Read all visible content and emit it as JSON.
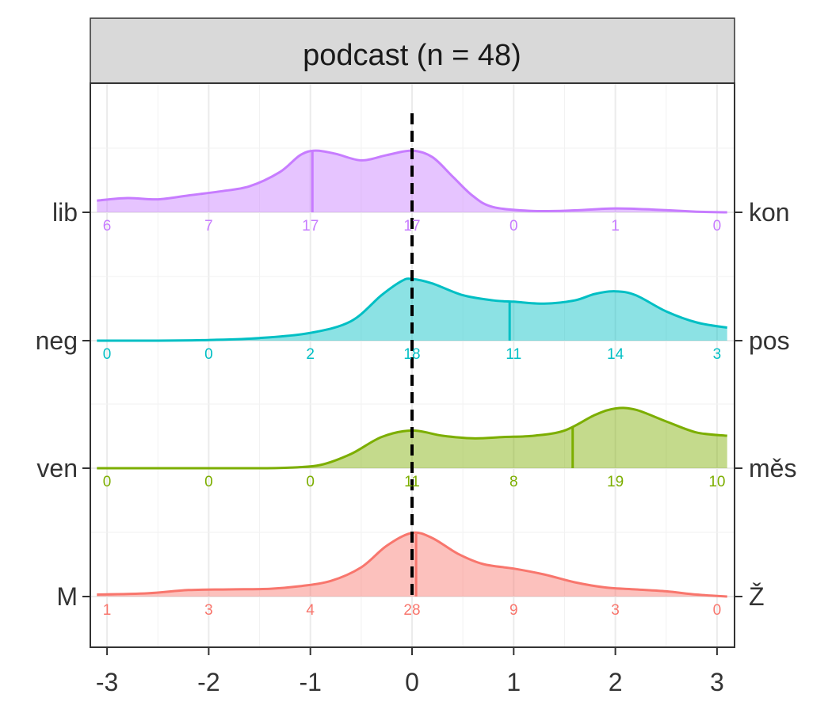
{
  "chart_data": {
    "type": "ridgeline",
    "title": "podcast (n = 48)",
    "xlim": [
      -3,
      3
    ],
    "x_ticks": [
      "-3",
      "-2",
      "-1",
      "0",
      "1",
      "2",
      "3"
    ],
    "reference_line_x": 0,
    "grid": true,
    "series": [
      {
        "name": "lib – kon",
        "left_label": "lib",
        "right_label": "kon",
        "color": "#c77cff",
        "counts_by_x": [
          6,
          7,
          17,
          17,
          0,
          1,
          0
        ],
        "count_labels": [
          "6",
          "7",
          "17",
          "17",
          "0",
          "1",
          "0"
        ],
        "mean": -0.98,
        "density": [
          [
            -3.1,
            0.18
          ],
          [
            -2.8,
            0.22
          ],
          [
            -2.5,
            0.2
          ],
          [
            -2.2,
            0.26
          ],
          [
            -1.9,
            0.32
          ],
          [
            -1.6,
            0.4
          ],
          [
            -1.3,
            0.62
          ],
          [
            -1.1,
            0.88
          ],
          [
            -0.95,
            0.95
          ],
          [
            -0.75,
            0.9
          ],
          [
            -0.5,
            0.8
          ],
          [
            -0.25,
            0.88
          ],
          [
            0.0,
            0.95
          ],
          [
            0.2,
            0.85
          ],
          [
            0.4,
            0.55
          ],
          [
            0.6,
            0.25
          ],
          [
            0.8,
            0.08
          ],
          [
            1.2,
            0.02
          ],
          [
            1.6,
            0.03
          ],
          [
            2.0,
            0.06
          ],
          [
            2.4,
            0.04
          ],
          [
            2.8,
            0.01
          ],
          [
            3.1,
            0.0
          ]
        ]
      },
      {
        "name": "neg – pos",
        "left_label": "neg",
        "right_label": "pos",
        "color": "#00bfc4",
        "counts_by_x": [
          0,
          0,
          2,
          18,
          11,
          14,
          3
        ],
        "count_labels": [
          "0",
          "0",
          "2",
          "18",
          "11",
          "14",
          "3"
        ],
        "mean": 0.96,
        "density": [
          [
            -3.1,
            0.0
          ],
          [
            -2.5,
            0.0
          ],
          [
            -2.0,
            0.01
          ],
          [
            -1.5,
            0.04
          ],
          [
            -1.0,
            0.12
          ],
          [
            -0.6,
            0.3
          ],
          [
            -0.3,
            0.7
          ],
          [
            -0.1,
            0.92
          ],
          [
            0.0,
            0.95
          ],
          [
            0.2,
            0.88
          ],
          [
            0.5,
            0.7
          ],
          [
            0.8,
            0.62
          ],
          [
            1.0,
            0.6
          ],
          [
            1.3,
            0.57
          ],
          [
            1.6,
            0.62
          ],
          [
            1.8,
            0.72
          ],
          [
            2.0,
            0.76
          ],
          [
            2.2,
            0.7
          ],
          [
            2.5,
            0.45
          ],
          [
            2.8,
            0.28
          ],
          [
            3.1,
            0.2
          ]
        ]
      },
      {
        "name": "ven – měs",
        "left_label": "ven",
        "right_label": "měs",
        "color": "#7cae00",
        "counts_by_x": [
          0,
          0,
          0,
          11,
          8,
          19,
          10
        ],
        "count_labels": [
          "0",
          "0",
          "0",
          "11",
          "8",
          "19",
          "10"
        ],
        "mean": 1.58,
        "density": [
          [
            -3.1,
            0.0
          ],
          [
            -2.5,
            0.0
          ],
          [
            -2.0,
            0.0
          ],
          [
            -1.5,
            0.0
          ],
          [
            -1.2,
            0.01
          ],
          [
            -0.9,
            0.05
          ],
          [
            -0.6,
            0.22
          ],
          [
            -0.3,
            0.48
          ],
          [
            0.0,
            0.58
          ],
          [
            0.3,
            0.5
          ],
          [
            0.6,
            0.46
          ],
          [
            0.9,
            0.48
          ],
          [
            1.2,
            0.5
          ],
          [
            1.5,
            0.58
          ],
          [
            1.8,
            0.82
          ],
          [
            2.0,
            0.92
          ],
          [
            2.2,
            0.9
          ],
          [
            2.5,
            0.72
          ],
          [
            2.8,
            0.55
          ],
          [
            3.1,
            0.5
          ]
        ]
      },
      {
        "name": "M – Ž",
        "left_label": "M",
        "right_label": "Ž",
        "color": "#f8766d",
        "counts_by_x": [
          1,
          3,
          4,
          28,
          9,
          3,
          0
        ],
        "count_labels": [
          "1",
          "3",
          "4",
          "28",
          "9",
          "3",
          "0"
        ],
        "mean": 0.04,
        "density": [
          [
            -3.1,
            0.03
          ],
          [
            -2.6,
            0.05
          ],
          [
            -2.2,
            0.1
          ],
          [
            -1.8,
            0.11
          ],
          [
            -1.4,
            0.12
          ],
          [
            -1.1,
            0.16
          ],
          [
            -0.8,
            0.24
          ],
          [
            -0.5,
            0.45
          ],
          [
            -0.25,
            0.78
          ],
          [
            0.0,
            0.98
          ],
          [
            0.2,
            0.9
          ],
          [
            0.45,
            0.66
          ],
          [
            0.7,
            0.5
          ],
          [
            1.0,
            0.43
          ],
          [
            1.3,
            0.34
          ],
          [
            1.6,
            0.22
          ],
          [
            1.9,
            0.14
          ],
          [
            2.2,
            0.11
          ],
          [
            2.5,
            0.08
          ],
          [
            2.8,
            0.03
          ],
          [
            3.1,
            0.0
          ]
        ]
      }
    ]
  }
}
